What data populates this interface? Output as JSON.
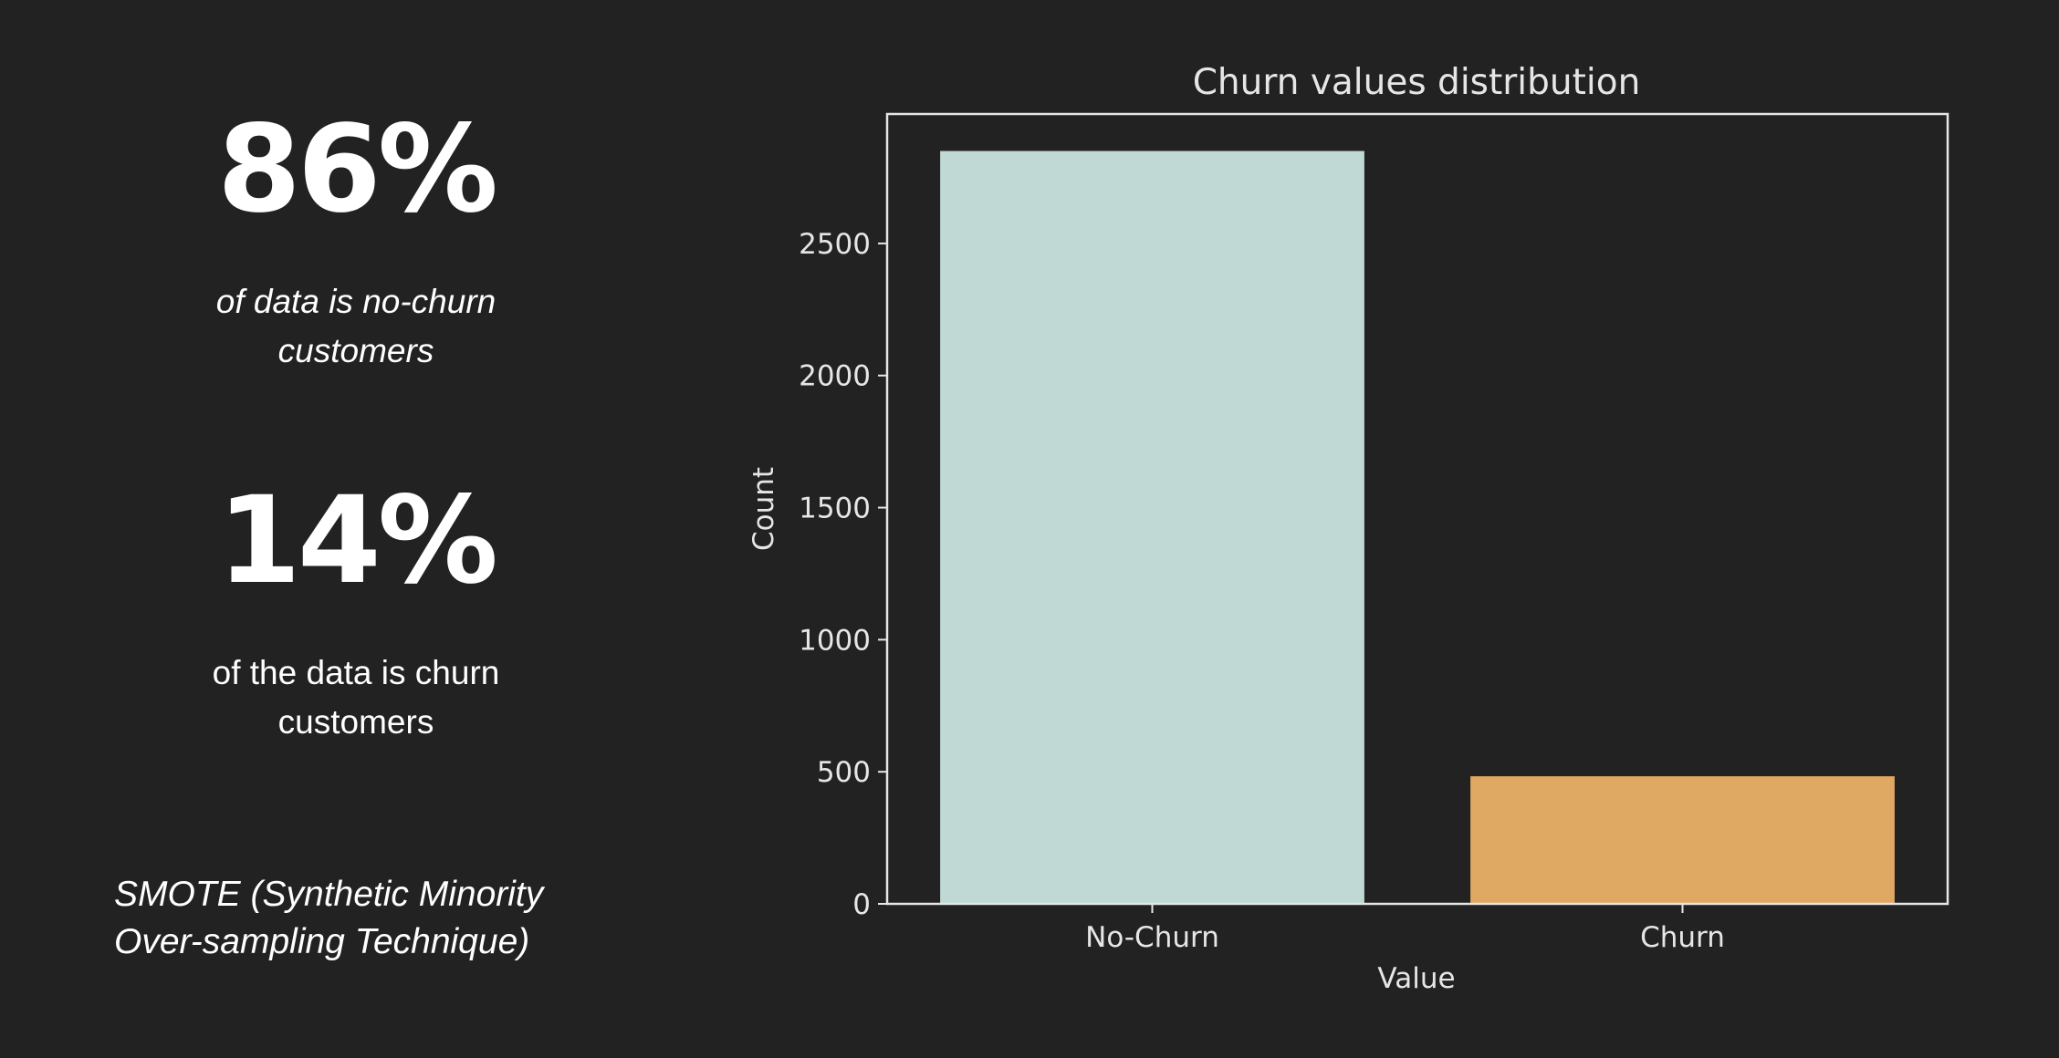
{
  "stats": [
    {
      "value": "86%",
      "description": "of data is no-churn customers"
    },
    {
      "value": "14%",
      "description": "of the data is churn customers"
    }
  ],
  "footnote": "SMOTE (Synthetic Minority Over-sampling Technique)",
  "colors": {
    "background": "#222222",
    "no_churn_bar": "#c0d9d4",
    "churn_bar": "#dfa964",
    "axes": "#e6e6e6"
  },
  "chart_data": {
    "type": "bar",
    "title": "Churn values distribution",
    "xlabel": "Value",
    "ylabel": "Count",
    "categories": [
      "No-Churn",
      "Churn"
    ],
    "values": [
      2850,
      483
    ],
    "bar_colors": [
      "#c0d9d4",
      "#dfa964"
    ],
    "ylim": [
      0,
      2990
    ],
    "yticks": [
      0,
      500,
      1000,
      1500,
      2000,
      2500
    ],
    "grid": false,
    "legend": "none"
  }
}
